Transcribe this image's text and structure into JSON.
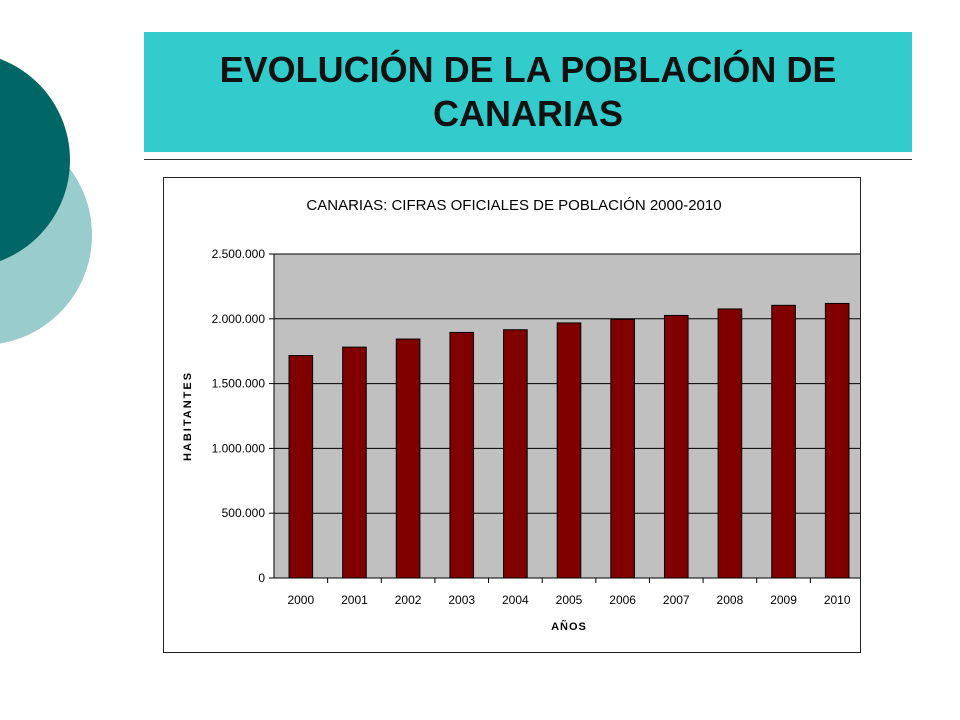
{
  "slide": {
    "title": "EVOLUCIÓN DE LA POBLACIÓN DE CANARIAS",
    "colors": {
      "band": "#33CCCC",
      "circle_dark": "#006666",
      "circle_light": "#99CCCC"
    }
  },
  "chart_data": {
    "type": "bar",
    "title": "CANARIAS: CIFRAS OFICIALES DE POBLACIÓN 2000-2010",
    "xlabel": "AÑOS",
    "ylabel": "HABITANTES",
    "categories": [
      "2000",
      "2001",
      "2002",
      "2003",
      "2004",
      "2005",
      "2006",
      "2007",
      "2008",
      "2009",
      "2010"
    ],
    "values": [
      1716276,
      1781366,
      1843755,
      1894868,
      1915540,
      1968280,
      1995833,
      2025951,
      2075968,
      2103992,
      2118519
    ],
    "ylim": [
      0,
      2500000
    ],
    "yticks": [
      0,
      500000,
      1000000,
      1500000,
      2000000,
      2500000
    ],
    "ytick_labels": [
      "0",
      "500.000",
      "1.000.000",
      "1.500.000",
      "2.000.000",
      "2.500.000"
    ],
    "grid": true,
    "legend": "none",
    "colors": {
      "bar": "#800000",
      "plot_bg": "#C0C0C0"
    }
  }
}
